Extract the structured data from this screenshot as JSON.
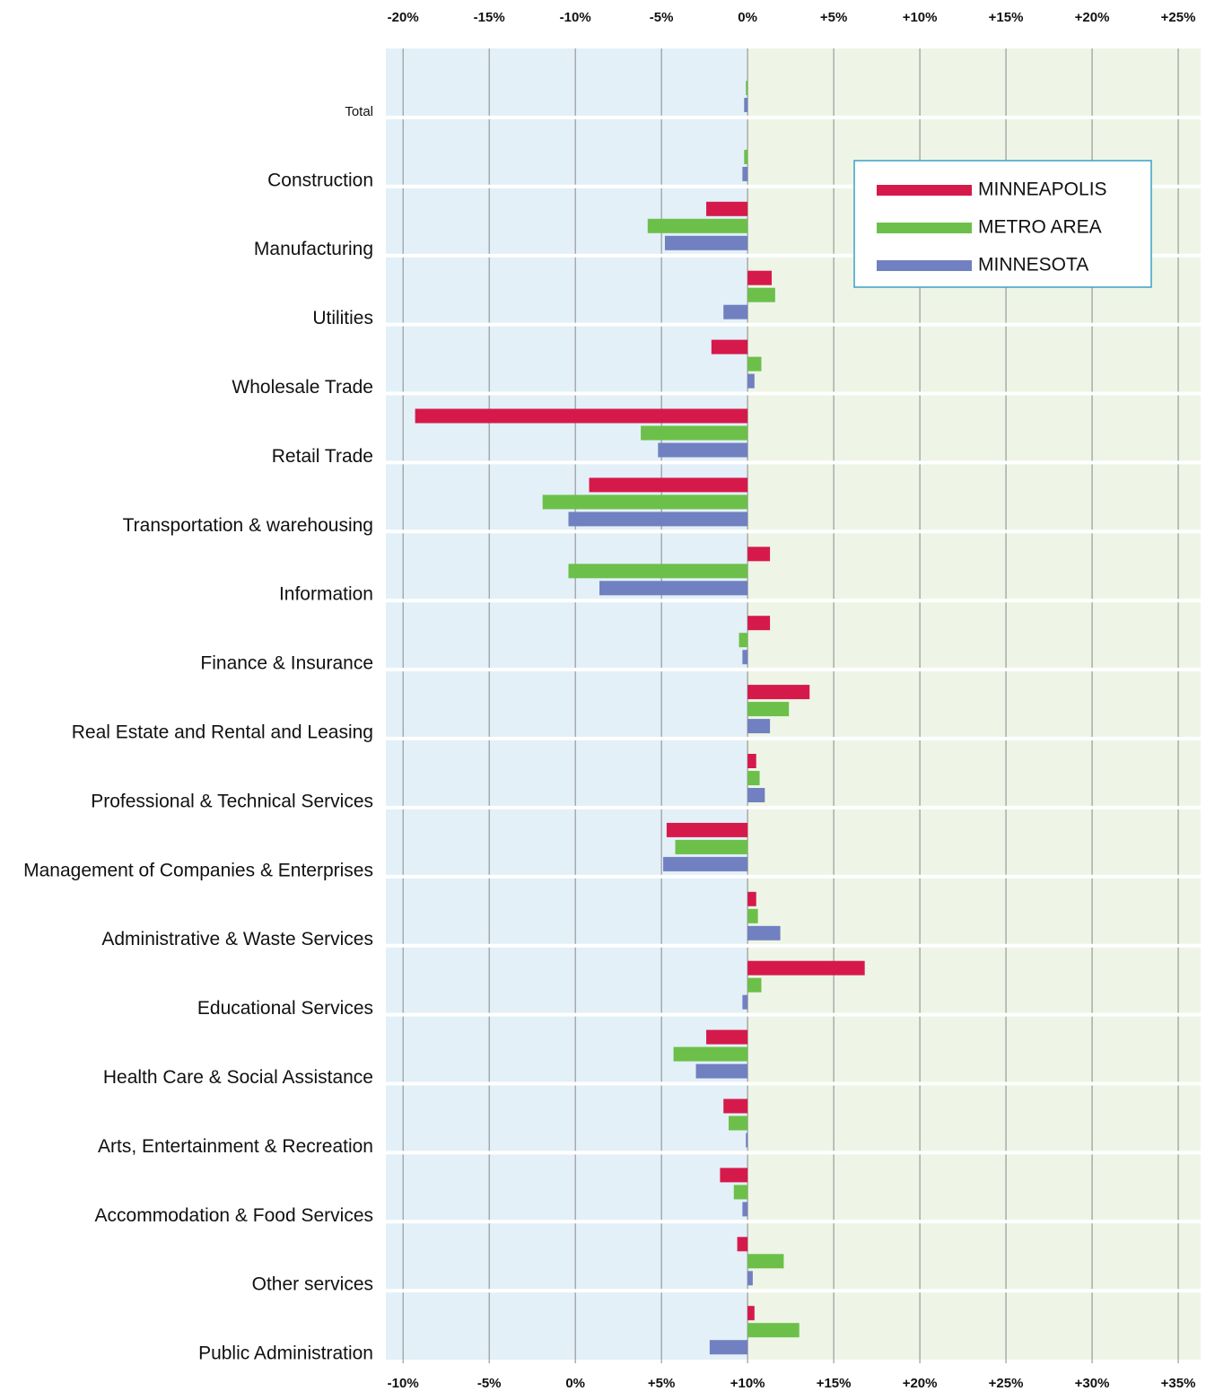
{
  "chart_data": {
    "type": "hbar",
    "categories": [
      "Total",
      "Construction",
      "Manufacturing",
      "Utilities",
      "Wholesale Trade",
      "Retail Trade",
      "Transportation & warehousing",
      "Information",
      "Finance & Insurance",
      "Real Estate and Rental and Leasing",
      "Professional & Technical Services",
      "Management of Companies & Enterprises",
      "Administrative & Waste Services",
      "Educational Services",
      "Health Care & Social Assistance",
      "Arts, Entertainment & Recreation",
      "Accommodation & Food Services",
      "Other services",
      "Public Administration"
    ],
    "series": [
      {
        "name": "MINNEAPOLIS",
        "color": "#d6194b",
        "values": [
          null,
          null,
          -2.4,
          1.4,
          -2.1,
          -19.3,
          -9.2,
          1.3,
          1.3,
          3.6,
          0.5,
          -4.7,
          0.5,
          6.8,
          -2.4,
          -1.4,
          -1.6,
          -0.6,
          0.4
        ]
      },
      {
        "name": "METRO AREA",
        "color": "#6cc04a",
        "values": [
          -0.1,
          -0.2,
          -5.8,
          1.6,
          0.8,
          -6.2,
          -11.9,
          -10.4,
          -0.5,
          2.4,
          0.7,
          -4.2,
          0.6,
          0.8,
          -4.3,
          -1.1,
          -0.8,
          2.1,
          3.0
        ]
      },
      {
        "name": "MINNESOTA",
        "color": "#7080c0",
        "values": [
          -0.2,
          -0.3,
          -4.8,
          -1.4,
          0.4,
          -5.2,
          -10.4,
          -8.6,
          -0.3,
          1.3,
          1.0,
          -4.9,
          1.9,
          -0.3,
          -3.0,
          -0.1,
          -0.3,
          0.3,
          -2.2
        ]
      }
    ],
    "xlim": [
      -21,
      26.3
    ],
    "xticks": [
      {
        "value": -20,
        "label": "-20%"
      },
      {
        "value": -15,
        "label": "-15%"
      },
      {
        "value": -10,
        "label": "-10%"
      },
      {
        "value": -5,
        "label": "-5%"
      },
      {
        "value": 0,
        "label": "0%"
      },
      {
        "value": 5,
        "label": "+5%"
      },
      {
        "value": 10,
        "label": "+10%"
      },
      {
        "value": 15,
        "label": "+15%"
      },
      {
        "value": 20,
        "label": "+20%"
      },
      {
        "value": 25,
        "label": "+25%"
      }
    ],
    "x2lim": [
      -11,
      36.3
    ],
    "x2ticks": [
      {
        "value": -10,
        "label": "-10%"
      },
      {
        "value": -5,
        "label": "-5%"
      },
      {
        "value": 0,
        "label": "0%"
      },
      {
        "value": 5,
        "label": "+5%"
      },
      {
        "value": 10,
        "label": "+10%"
      },
      {
        "value": 15,
        "label": "+15%"
      },
      {
        "value": 20,
        "label": "+20%"
      },
      {
        "value": 25,
        "label": "+25%"
      },
      {
        "value": 30,
        "label": "+30%"
      },
      {
        "value": 35,
        "label": "+35%"
      }
    ],
    "grid": true,
    "legend": "top-right"
  }
}
